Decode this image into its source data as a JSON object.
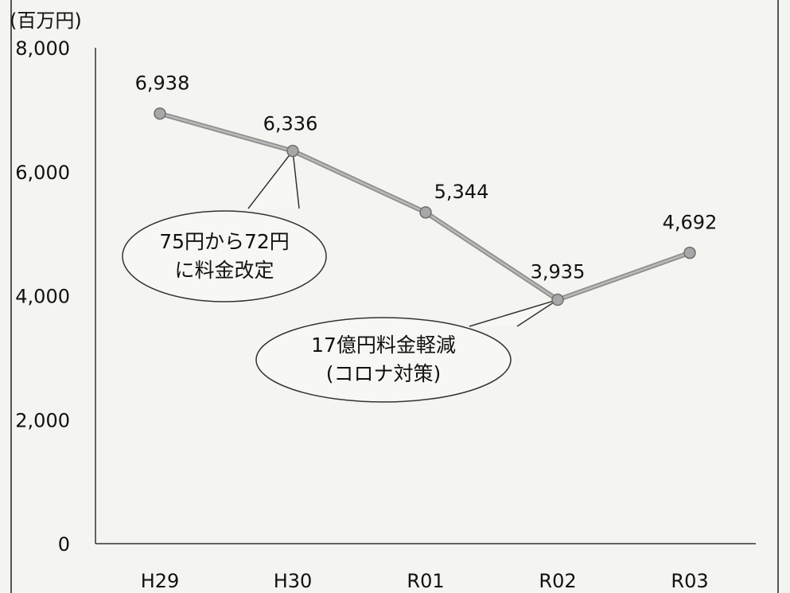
{
  "chart_data": {
    "type": "line",
    "unit_label": "(百万円)",
    "categories": [
      "H29",
      "H30",
      "R01",
      "R02",
      "R03"
    ],
    "values": [
      6938,
      6336,
      5344,
      3935,
      4692
    ],
    "data_labels": [
      "6,938",
      "6,336",
      "5,344",
      "3,935",
      "4,692"
    ],
    "ylim": [
      0,
      8000
    ],
    "yticks": [
      0,
      2000,
      4000,
      6000,
      8000
    ],
    "ytick_labels": [
      "0",
      "2,000",
      "4,000",
      "6,000",
      "8,000"
    ],
    "grid": false,
    "annotations": [
      {
        "category": "H30",
        "lines": [
          "75円から72円",
          "に料金改定"
        ]
      },
      {
        "category": "R02",
        "lines": [
          "17億円料金軽減",
          "(コロナ対策)"
        ]
      }
    ]
  }
}
